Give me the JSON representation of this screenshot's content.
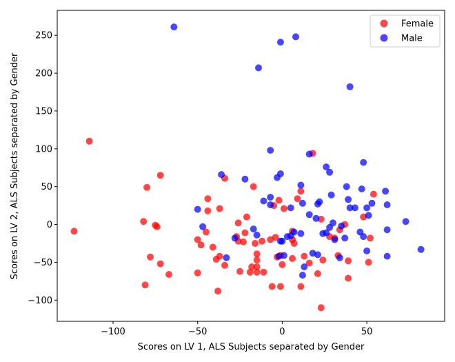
{
  "chart_data": {
    "type": "scatter",
    "title": "",
    "xlabel": "Scores on LV 1, ALS Subjects separated by Gender",
    "ylabel": "Scores on LV 2, ALS Subjects separated by Gender",
    "xlim": [
      -133,
      96
    ],
    "ylim": [
      -128,
      283
    ],
    "xticks": [
      -100,
      -50,
      0,
      50
    ],
    "yticks": [
      -100,
      -50,
      0,
      50,
      100,
      150,
      200,
      250
    ],
    "legend": "top-right",
    "grid": false,
    "series": [
      {
        "name": "Female",
        "color": "#ff0000",
        "points": [
          [
            -114,
            110
          ],
          [
            -123,
            -9
          ],
          [
            -72,
            65
          ],
          [
            -80,
            49
          ],
          [
            -82,
            4
          ],
          [
            -75,
            -1
          ],
          [
            -74,
            -3
          ],
          [
            -78,
            -43
          ],
          [
            -72,
            -52
          ],
          [
            -67,
            -66
          ],
          [
            -81,
            -80
          ],
          [
            -44,
            34
          ],
          [
            -44,
            18
          ],
          [
            -37,
            21
          ],
          [
            -34,
            61
          ],
          [
            -50,
            -20
          ],
          [
            -45,
            -10
          ],
          [
            -48,
            -27
          ],
          [
            -41,
            -30
          ],
          [
            -37,
            -42
          ],
          [
            -39,
            -46
          ],
          [
            -34,
            -54
          ],
          [
            -50,
            -64
          ],
          [
            -38,
            -88
          ],
          [
            -26,
            2
          ],
          [
            -21,
            10
          ],
          [
            -17,
            50
          ],
          [
            -22,
            -11
          ],
          [
            -27,
            -16
          ],
          [
            -26,
            -22
          ],
          [
            -23,
            -23
          ],
          [
            -16,
            -25
          ],
          [
            -12,
            -22
          ],
          [
            -15,
            -39
          ],
          [
            -15,
            -47
          ],
          [
            -18,
            -56
          ],
          [
            -15,
            -56
          ],
          [
            -19,
            -63
          ],
          [
            -15,
            -63
          ],
          [
            -11,
            -63
          ],
          [
            -25,
            -62
          ],
          [
            -5,
            25
          ],
          [
            -2,
            32
          ],
          [
            1,
            21
          ],
          [
            6,
            -9
          ],
          [
            -7,
            -20
          ],
          [
            -4,
            -17
          ],
          [
            -3,
            -43
          ],
          [
            -1,
            -41
          ],
          [
            0,
            -53
          ],
          [
            6,
            -45
          ],
          [
            -1,
            -82
          ],
          [
            -6,
            -82
          ],
          [
            11,
            44
          ],
          [
            9,
            34
          ],
          [
            18,
            94
          ],
          [
            6,
            -20
          ],
          [
            7,
            -25
          ],
          [
            13,
            -42
          ],
          [
            16,
            -51
          ],
          [
            21,
            -65
          ],
          [
            11,
            -82
          ],
          [
            23,
            -110
          ],
          [
            23,
            7
          ],
          [
            28,
            -16
          ],
          [
            31,
            -18
          ],
          [
            34,
            -7
          ],
          [
            37,
            0
          ],
          [
            24,
            -47
          ],
          [
            33,
            -41
          ],
          [
            39,
            -48
          ],
          [
            39,
            -71
          ],
          [
            48,
            10
          ],
          [
            54,
            40
          ],
          [
            52,
            -18
          ],
          [
            51,
            -50
          ]
        ]
      },
      {
        "name": "Male",
        "color": "#0000ff",
        "points": [
          [
            -64,
            261
          ],
          [
            -14,
            207
          ],
          [
            -1,
            241
          ],
          [
            8,
            248
          ],
          [
            40,
            182
          ],
          [
            -36,
            66
          ],
          [
            -22,
            60
          ],
          [
            -50,
            20
          ],
          [
            -47,
            -3
          ],
          [
            -28,
            -18
          ],
          [
            -33,
            -44
          ],
          [
            -15,
            -14
          ],
          [
            -17,
            -6
          ],
          [
            -11,
            31
          ],
          [
            -7,
            36
          ],
          [
            -7,
            26
          ],
          [
            -7,
            98
          ],
          [
            -3,
            62
          ],
          [
            -1,
            67
          ],
          [
            5,
            22
          ],
          [
            0,
            -22
          ],
          [
            -1,
            -22
          ],
          [
            -2,
            -42
          ],
          [
            1,
            -41
          ],
          [
            3,
            -16
          ],
          [
            5,
            -15
          ],
          [
            7,
            -10
          ],
          [
            11,
            52
          ],
          [
            12,
            28
          ],
          [
            16,
            93
          ],
          [
            16,
            13
          ],
          [
            20,
            8
          ],
          [
            21,
            27
          ],
          [
            22,
            30
          ],
          [
            11,
            -12
          ],
          [
            18,
            -38
          ],
          [
            21,
            -40
          ],
          [
            13,
            -56
          ],
          [
            12,
            -67
          ],
          [
            26,
            76
          ],
          [
            28,
            69
          ],
          [
            29,
            39
          ],
          [
            24,
            -12
          ],
          [
            26,
            -11
          ],
          [
            28,
            -4
          ],
          [
            30,
            2
          ],
          [
            31,
            -20
          ],
          [
            35,
            -2
          ],
          [
            37,
            -18
          ],
          [
            34,
            -44
          ],
          [
            38,
            50
          ],
          [
            39,
            33
          ],
          [
            40,
            22
          ],
          [
            43,
            22
          ],
          [
            47,
            47
          ],
          [
            48,
            82
          ],
          [
            46,
            -10
          ],
          [
            48,
            -16
          ],
          [
            50,
            22
          ],
          [
            51,
            12
          ],
          [
            53,
            28
          ],
          [
            61,
            44
          ],
          [
            62,
            26
          ],
          [
            62,
            -7
          ],
          [
            62,
            -42
          ],
          [
            50,
            -35
          ],
          [
            73,
            4
          ],
          [
            82,
            -33
          ]
        ]
      }
    ]
  }
}
